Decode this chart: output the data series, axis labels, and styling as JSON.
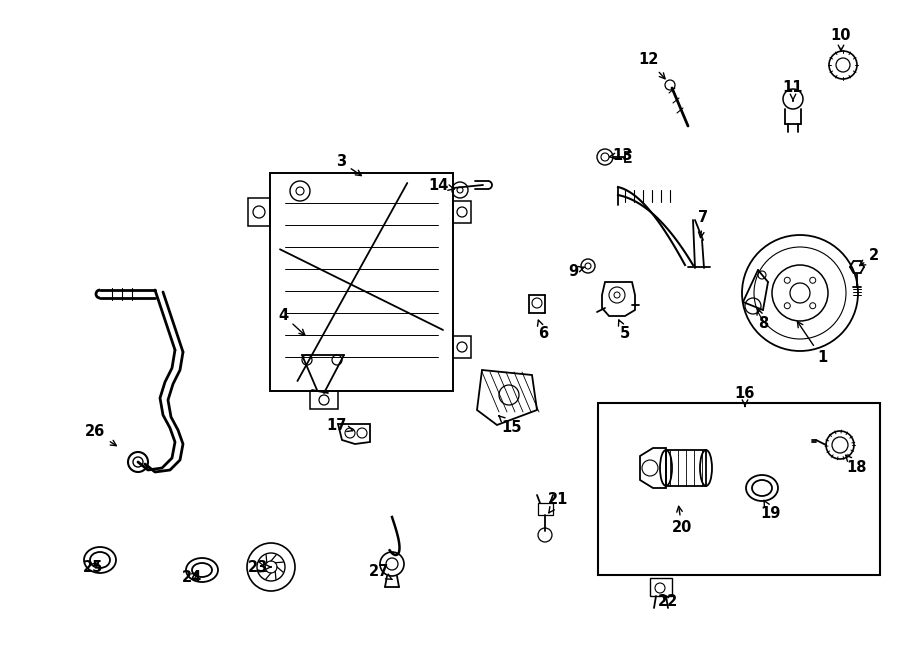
{
  "bg_color": "#ffffff",
  "line_color": "#000000",
  "lw": 1.3,
  "label_fontsize": 10.5,
  "parts_labels": [
    [
      1,
      822,
      358,
      795,
      318
    ],
    [
      2,
      874,
      256,
      856,
      268
    ],
    [
      3,
      341,
      162,
      365,
      178
    ],
    [
      4,
      283,
      315,
      308,
      338
    ],
    [
      5,
      625,
      334,
      617,
      316
    ],
    [
      6,
      543,
      334,
      537,
      316
    ],
    [
      7,
      703,
      218,
      700,
      242
    ],
    [
      8,
      763,
      323,
      756,
      305
    ],
    [
      9,
      573,
      271,
      588,
      266
    ],
    [
      10,
      841,
      35,
      841,
      55
    ],
    [
      11,
      793,
      88,
      793,
      104
    ],
    [
      12,
      648,
      60,
      668,
      82
    ],
    [
      13,
      623,
      155,
      608,
      157
    ],
    [
      14,
      438,
      185,
      458,
      190
    ],
    [
      15,
      512,
      428,
      498,
      415
    ],
    [
      16,
      745,
      393,
      745,
      407
    ],
    [
      17,
      336,
      425,
      357,
      432
    ],
    [
      18,
      857,
      468,
      843,
      452
    ],
    [
      19,
      771,
      513,
      762,
      497
    ],
    [
      20,
      682,
      528,
      678,
      502
    ],
    [
      21,
      558,
      500,
      548,
      514
    ],
    [
      22,
      668,
      601,
      660,
      592
    ],
    [
      23,
      258,
      567,
      272,
      567
    ],
    [
      24,
      192,
      577,
      201,
      570
    ],
    [
      25,
      93,
      567,
      102,
      560
    ],
    [
      26,
      95,
      432,
      120,
      448
    ],
    [
      27,
      379,
      572,
      393,
      580
    ]
  ]
}
